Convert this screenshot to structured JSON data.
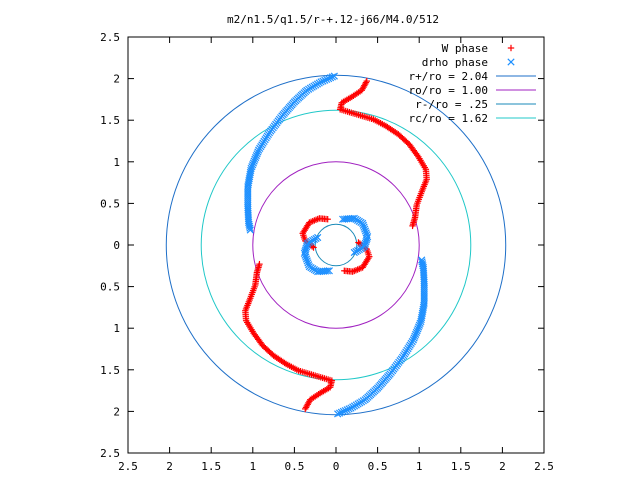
{
  "chart_data": {
    "type": "scatter",
    "title": "m2/n1.5/q1.5/r-+.12-j66/M4.0/512",
    "xlabel": "",
    "ylabel": "",
    "xlim": [
      -2.5,
      2.5
    ],
    "ylim": [
      -2.5,
      2.5
    ],
    "x_tick_labels": [
      "2.5",
      "2",
      "1.5",
      "1",
      "0.5",
      "0",
      "0.5",
      "1",
      "1.5",
      "2",
      "2.5"
    ],
    "y_tick_labels": [
      "2.5",
      "2",
      "1.5",
      "1",
      "0.5",
      "0",
      "0.5",
      "1",
      "1.5",
      "2",
      "2.5"
    ],
    "grid": false,
    "legend_position": "top-right",
    "series": [
      {
        "name": "W phase",
        "marker": "plus",
        "color": "#ff0000",
        "outer_spiral": [
          [
            0.37,
            1.97
          ],
          [
            0.31,
            1.86
          ],
          [
            0.19,
            1.78
          ],
          [
            0.07,
            1.71
          ],
          [
            0.05,
            1.63
          ],
          [
            0.25,
            1.57
          ],
          [
            0.45,
            1.51
          ],
          [
            0.6,
            1.43
          ],
          [
            0.75,
            1.33
          ],
          [
            0.88,
            1.21
          ],
          [
            0.99,
            1.06
          ],
          [
            1.08,
            0.91
          ],
          [
            1.09,
            0.79
          ],
          [
            1.03,
            0.64
          ],
          [
            0.97,
            0.48
          ],
          [
            0.95,
            0.33
          ],
          [
            0.92,
            0.23
          ]
        ],
        "inner_arm": [
          [
            -0.1,
            0.31
          ],
          [
            -0.2,
            0.32
          ],
          [
            -0.32,
            0.27
          ],
          [
            -0.4,
            0.14
          ],
          [
            -0.37,
            0.05
          ],
          [
            -0.27,
            -0.03
          ]
        ]
      },
      {
        "name": "drho phase",
        "marker": "cross",
        "color": "#1e90ff",
        "outer_spiral": [
          [
            -0.02,
            2.03
          ],
          [
            -0.18,
            1.96
          ],
          [
            -0.35,
            1.86
          ],
          [
            -0.5,
            1.72
          ],
          [
            -0.65,
            1.55
          ],
          [
            -0.8,
            1.35
          ],
          [
            -0.93,
            1.14
          ],
          [
            -1.02,
            0.92
          ],
          [
            -1.06,
            0.7
          ],
          [
            -1.06,
            0.45
          ],
          [
            -1.05,
            0.27
          ],
          [
            -1.03,
            0.18
          ]
        ],
        "inner_arm": [
          [
            0.08,
            0.31
          ],
          [
            0.22,
            0.32
          ],
          [
            0.32,
            0.26
          ],
          [
            0.38,
            0.1
          ],
          [
            0.34,
            -0.02
          ],
          [
            0.22,
            -0.09
          ]
        ]
      }
    ],
    "curves": [
      {
        "name": "r+/ro = 2.04",
        "type": "circle",
        "radius": 2.04,
        "color": "#1e6fc8"
      },
      {
        "name": "ro/ro = 1.00",
        "type": "circle",
        "radius": 1.0,
        "color": "#a020c0"
      },
      {
        "name": "r-/ro = .25",
        "type": "circle",
        "radius": 0.25,
        "color": "#1a8ab8"
      },
      {
        "name": "rc/ro = 1.62",
        "type": "circle",
        "radius": 1.62,
        "color": "#20c8c8"
      }
    ]
  }
}
